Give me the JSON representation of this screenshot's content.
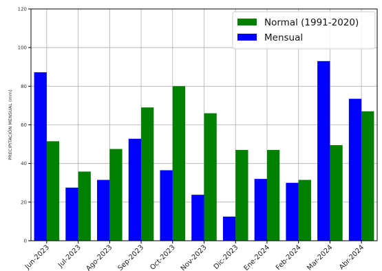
{
  "chart_data": {
    "type": "bar",
    "ylabel": "PRECIPITACIÓN MENSUAL (mm)",
    "ylim": [
      0,
      120
    ],
    "yticks": [
      0,
      20,
      40,
      60,
      80,
      100,
      120
    ],
    "grid": true,
    "legend_position": "top-right",
    "categories": [
      "Jun-2023",
      "Jul-2023",
      "Ago-2023",
      "Sep-2023",
      "Oct-2023",
      "Nov-2023",
      "Dic-2023",
      "Ene-2024",
      "Feb-2024",
      "Mar-2024",
      "Abr-2024"
    ],
    "series": [
      {
        "name": "Mensual",
        "color": "#0000ff",
        "values": [
          87.2,
          27.5,
          31.5,
          52.8,
          36.5,
          23.8,
          12.5,
          32.0,
          30.0,
          93.0,
          73.5
        ]
      },
      {
        "name": "Normal (1991-2020)",
        "color": "#008000",
        "values": [
          51.5,
          35.8,
          47.5,
          69.0,
          80.0,
          66.0,
          47.0,
          47.0,
          31.5,
          49.5,
          67.0
        ]
      }
    ],
    "legend": [
      "Normal (1991-2020)",
      "Mensual"
    ]
  }
}
